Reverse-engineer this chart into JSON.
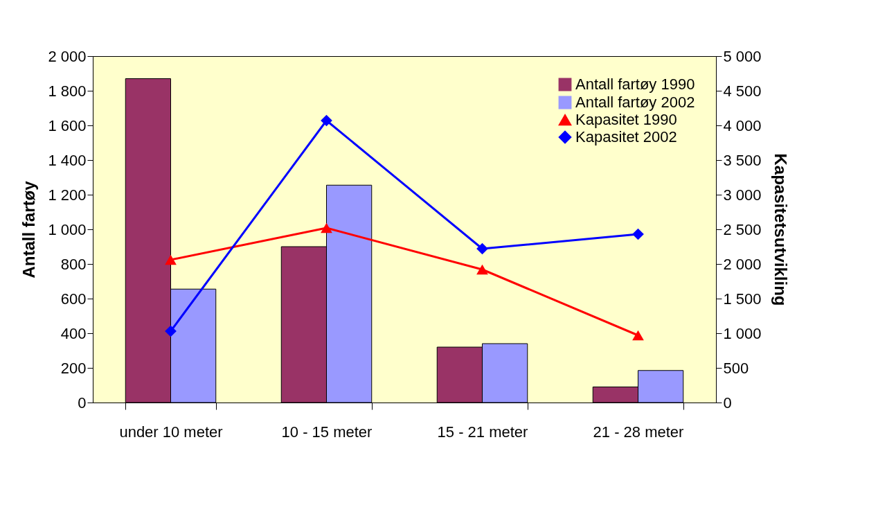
{
  "chart_data": {
    "type": "bar",
    "xlabel": null,
    "ylabel": "Antall fartøy",
    "y2label": "Kapasitetsutvikling",
    "categories": [
      "under 10 meter",
      "10 - 15 meter",
      "15 - 21 meter",
      "21 - 28 meter"
    ],
    "series": [
      {
        "name": "Antall fartøy 1990",
        "color": "#993366",
        "values": [
          1870,
          900,
          320,
          90
        ]
      },
      {
        "name": "Antall fartøy 2002",
        "color": "#9999ff",
        "values": [
          655,
          1255,
          340,
          185
        ]
      },
      {
        "name": "Kapasitet 1990",
        "type": "line",
        "axis": "y2",
        "marker": "triangle",
        "color": "#ff0000",
        "values": [
          2060,
          2520,
          1920,
          970
        ]
      },
      {
        "name": "Kapasitet 2002",
        "type": "line",
        "axis": "y2",
        "marker": "diamond",
        "color": "#0000ff",
        "values": [
          1030,
          4070,
          2220,
          2430
        ]
      }
    ],
    "ylim": [
      0,
      2000
    ],
    "yticks": [
      0,
      200,
      400,
      600,
      800,
      {
        "value": 1000,
        "label": "1 000"
      },
      {
        "value": 1200,
        "label": "1 200"
      },
      {
        "value": 1400,
        "label": "1 400"
      },
      {
        "value": 1600,
        "label": "1 600"
      },
      {
        "value": 1800,
        "label": "1 800"
      },
      {
        "value": 2000,
        "label": "2 000"
      }
    ],
    "y2lim": [
      0,
      5000
    ],
    "y2ticks": [
      0,
      500,
      {
        "value": 1000,
        "label": "1 000"
      },
      {
        "value": 1500,
        "label": "1 500"
      },
      {
        "value": 2000,
        "label": "2 000"
      },
      {
        "value": 2500,
        "label": "2 500"
      },
      {
        "value": 3000,
        "label": "3 000"
      },
      {
        "value": 3500,
        "label": "3 500"
      },
      {
        "value": 4000,
        "label": "4 000"
      },
      {
        "value": 4500,
        "label": "4 500"
      },
      {
        "value": 5000,
        "label": "5 000"
      }
    ],
    "grid": false,
    "legend": "top right",
    "line_style": "solid"
  }
}
